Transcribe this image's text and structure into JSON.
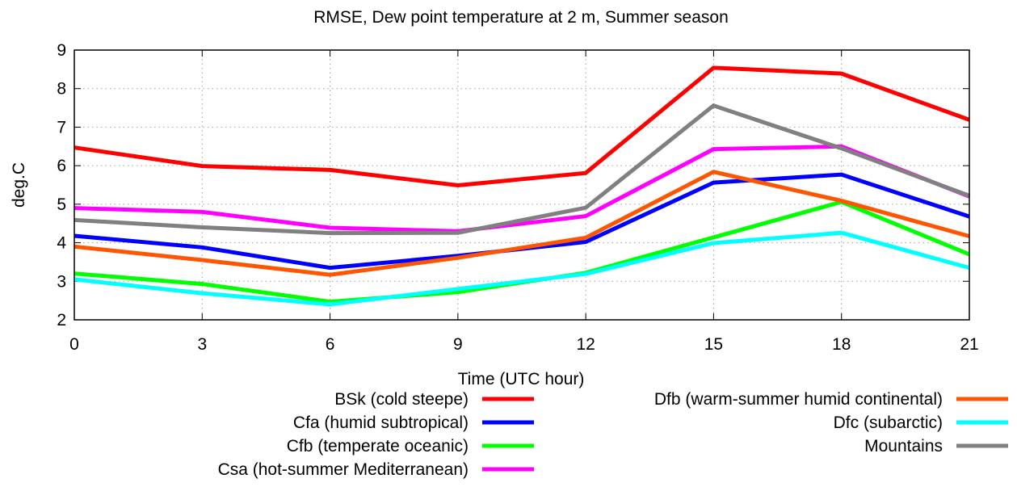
{
  "chart_data": {
    "type": "line",
    "title": "RMSE, Dew point temperature at 2 m, Summer season",
    "xlabel": "Time (UTC hour)",
    "ylabel": "deg.C",
    "x": [
      0,
      3,
      6,
      9,
      12,
      15,
      18,
      21
    ],
    "xlim": [
      0,
      21
    ],
    "ylim": [
      2,
      9
    ],
    "xticks": [
      0,
      3,
      6,
      9,
      12,
      15,
      18,
      21
    ],
    "yticks": [
      2,
      3,
      4,
      5,
      6,
      7,
      8,
      9
    ],
    "grid": true,
    "legend_position": "bottom",
    "series": [
      {
        "name": "BSk (cold steepe)",
        "color": "#ff0000",
        "values": [
          6.47,
          5.99,
          5.89,
          5.49,
          5.81,
          8.54,
          8.39,
          7.19
        ]
      },
      {
        "name": "Cfa (humid subtropical)",
        "color": "#0000ff",
        "values": [
          4.18,
          3.88,
          3.35,
          3.66,
          4.02,
          5.56,
          5.77,
          4.68
        ]
      },
      {
        "name": "Cfb (temperate oceanic)",
        "color": "#00ff00",
        "values": [
          3.2,
          2.93,
          2.47,
          2.72,
          3.22,
          4.14,
          5.06,
          3.7
        ]
      },
      {
        "name": "Csa (hot-summer Mediterranean)",
        "color": "#ff00ff",
        "values": [
          4.9,
          4.8,
          4.39,
          4.3,
          4.69,
          6.43,
          6.5,
          5.2
        ]
      },
      {
        "name": "Dfb (warm-summer humid continental)",
        "color": "#ff5500",
        "values": [
          3.9,
          3.55,
          3.17,
          3.61,
          4.13,
          5.84,
          5.09,
          4.17
        ]
      },
      {
        "name": "Dfc (subarctic)",
        "color": "#00ffff",
        "values": [
          3.05,
          2.69,
          2.4,
          2.8,
          3.19,
          3.99,
          4.26,
          3.35
        ]
      },
      {
        "name": "Mountains",
        "color": "#808080",
        "values": [
          4.59,
          4.4,
          4.25,
          4.26,
          4.91,
          7.56,
          6.45,
          5.22
        ]
      }
    ]
  }
}
